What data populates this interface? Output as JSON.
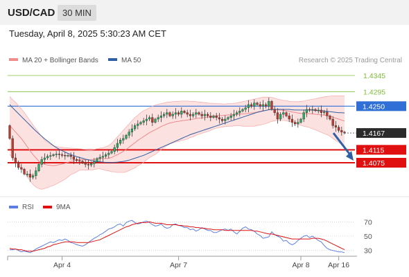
{
  "header": {
    "symbol": "USD/CAD",
    "timeframe": "30 MIN",
    "datetime": "Tuesday, April 8, 2025 5:30:23 AM CET"
  },
  "chart_data": [
    {
      "type": "candlestick",
      "legend": [
        {
          "label": "MA 20 + Bollinger Bands",
          "color": "#f28b8b"
        },
        {
          "label": "MA 50",
          "color": "#2f5fa5"
        }
      ],
      "legend_position": "top-left",
      "credit": "Research © 2025 Trading Central",
      "ylim": [
        1.3985,
        1.4375
      ],
      "levels": [
        {
          "value": 1.4345,
          "label": "1.4345",
          "style": "target",
          "color": "#7cbf3a"
        },
        {
          "value": 1.4295,
          "label": "1.4295",
          "style": "target",
          "color": "#7cbf3a"
        },
        {
          "value": 1.425,
          "label": "1.4250",
          "style": "pivot",
          "color": "#2f6fd6"
        },
        {
          "value": 1.4167,
          "label": "1.4167",
          "style": "last",
          "color": "#2b2b2b"
        },
        {
          "value": 1.4115,
          "label": "1.4115",
          "style": "support",
          "color": "#e01010"
        },
        {
          "value": 1.4075,
          "label": "1.4075",
          "style": "support",
          "color": "#e01010"
        }
      ],
      "close": [
        1.415,
        1.409,
        1.4075,
        1.406,
        1.4055,
        1.404,
        1.404,
        1.403,
        1.4035,
        1.405,
        1.407,
        1.4085,
        1.409,
        1.4095,
        1.4097,
        1.41,
        1.4102,
        1.41,
        1.4098,
        1.4096,
        1.4098,
        1.4094,
        1.4085,
        1.4082,
        1.408,
        1.4075,
        1.407,
        1.4068,
        1.4072,
        1.4078,
        1.4088,
        1.4092,
        1.4095,
        1.41,
        1.4105,
        1.411,
        1.4122,
        1.4135,
        1.4145,
        1.415,
        1.416,
        1.417,
        1.418,
        1.419,
        1.4195,
        1.42,
        1.4205,
        1.421,
        1.4215,
        1.42,
        1.421,
        1.4215,
        1.422,
        1.4225,
        1.423,
        1.422,
        1.4225,
        1.423,
        1.4225,
        1.4235,
        1.423,
        1.4225,
        1.422,
        1.4225,
        1.423,
        1.4225,
        1.422,
        1.4225,
        1.422,
        1.4215,
        1.422,
        1.4215,
        1.421,
        1.4205,
        1.421,
        1.4215,
        1.422,
        1.4225,
        1.423,
        1.4235,
        1.424,
        1.4245,
        1.4255,
        1.425,
        1.426,
        1.4255,
        1.425,
        1.4255,
        1.425,
        1.4265,
        1.424,
        1.423,
        1.421,
        1.4225,
        1.423,
        1.422,
        1.421,
        1.42,
        1.4195,
        1.42,
        1.421,
        1.423,
        1.424,
        1.4238,
        1.424,
        1.4236,
        1.4238,
        1.423,
        1.4232,
        1.422,
        1.421,
        1.419,
        1.4185,
        1.4175,
        1.417,
        1.4167
      ],
      "ma20": [
        1.419,
        1.418,
        1.417,
        1.416,
        1.415,
        1.4138,
        1.4125,
        1.4112,
        1.41,
        1.409,
        1.408,
        1.4073,
        1.407,
        1.4068,
        1.4067,
        1.4066,
        1.4067,
        1.4069,
        1.4071,
        1.4073,
        1.4076,
        1.4079,
        1.4081,
        1.4083,
        1.4085,
        1.4085,
        1.4084,
        1.4084,
        1.4084,
        1.4085,
        1.4087,
        1.4088,
        1.4088,
        1.4088,
        1.4089,
        1.4091,
        1.4096,
        1.41,
        1.4105,
        1.411,
        1.4116,
        1.4123,
        1.413,
        1.4137,
        1.4144,
        1.415,
        1.4156,
        1.4162,
        1.4168,
        1.4173,
        1.4177,
        1.4182,
        1.4187,
        1.4191,
        1.4195,
        1.4198,
        1.42,
        1.4202,
        1.4203,
        1.4205,
        1.4206,
        1.4207,
        1.4209,
        1.421,
        1.4212,
        1.4213,
        1.4214,
        1.4215,
        1.4216,
        1.4217,
        1.4219,
        1.422,
        1.4221,
        1.4221,
        1.4222,
        1.4223,
        1.4223,
        1.4224,
        1.4225,
        1.4226,
        1.4226,
        1.4227,
        1.4228,
        1.4229,
        1.423,
        1.4232,
        1.4234,
        1.4236,
        1.4237,
        1.4239,
        1.424,
        1.424,
        1.4239,
        1.4238,
        1.4237,
        1.4236,
        1.4234,
        1.4232,
        1.4231,
        1.4229,
        1.4228,
        1.4227,
        1.4227,
        1.4227,
        1.4226,
        1.4225,
        1.4224,
        1.4223,
        1.4222,
        1.4221,
        1.4219,
        1.4216,
        1.4213,
        1.421,
        1.4207,
        1.4204
      ],
      "bollinger_upper": [
        1.428,
        1.427,
        1.4262,
        1.4252,
        1.4242,
        1.423,
        1.4218,
        1.4205,
        1.4192,
        1.418,
        1.4168,
        1.4156,
        1.4145,
        1.4138,
        1.4132,
        1.4128,
        1.4125,
        1.4124,
        1.4123,
        1.4122,
        1.4121,
        1.412,
        1.412,
        1.4119,
        1.4118,
        1.4117,
        1.4116,
        1.4115,
        1.4115,
        1.4116,
        1.4118,
        1.412,
        1.4122,
        1.4125,
        1.4128,
        1.4135,
        1.4145,
        1.4155,
        1.4165,
        1.4175,
        1.4185,
        1.4195,
        1.4205,
        1.4215,
        1.4222,
        1.423,
        1.4236,
        1.424,
        1.4245,
        1.425,
        1.4253,
        1.4256,
        1.4258,
        1.426,
        1.4262,
        1.4263,
        1.4264,
        1.4265,
        1.4265,
        1.4266,
        1.4266,
        1.4266,
        1.4265,
        1.4265,
        1.4264,
        1.4263,
        1.4262,
        1.4261,
        1.426,
        1.4259,
        1.4259,
        1.4258,
        1.4258,
        1.4257,
        1.4257,
        1.4258,
        1.4258,
        1.4259,
        1.426,
        1.4262,
        1.4264,
        1.4266,
        1.4268,
        1.427,
        1.4272,
        1.4274,
        1.4276,
        1.4278,
        1.4278,
        1.4278,
        1.4277,
        1.4275,
        1.4272,
        1.427,
        1.4268,
        1.4267,
        1.4265,
        1.4264,
        1.4264,
        1.4264,
        1.4265,
        1.4266,
        1.4268,
        1.427,
        1.4272,
        1.4273,
        1.4275,
        1.4277,
        1.4279,
        1.428,
        1.4281,
        1.4282,
        1.4282,
        1.4282,
        1.4282,
        1.4282
      ],
      "bollinger_lower": [
        1.41,
        1.409,
        1.4078,
        1.4068,
        1.4058,
        1.4046,
        1.4032,
        1.4019,
        1.4008,
        1.4,
        1.3995,
        1.3993,
        1.3995,
        1.3998,
        1.4002,
        1.4005,
        1.4009,
        1.4014,
        1.4019,
        1.4024,
        1.4031,
        1.4038,
        1.4042,
        1.4047,
        1.4052,
        1.4053,
        1.4052,
        1.4053,
        1.4053,
        1.4054,
        1.4056,
        1.4056,
        1.4054,
        1.4051,
        1.405,
        1.4047,
        1.4047,
        1.4045,
        1.4045,
        1.4045,
        1.4047,
        1.4051,
        1.4055,
        1.4059,
        1.4066,
        1.407,
        1.4076,
        1.4084,
        1.4091,
        1.4096,
        1.4101,
        1.4108,
        1.4116,
        1.4122,
        1.4128,
        1.4133,
        1.4136,
        1.4139,
        1.4141,
        1.4144,
        1.4146,
        1.4148,
        1.4153,
        1.4155,
        1.416,
        1.4163,
        1.4166,
        1.4169,
        1.4172,
        1.4175,
        1.4179,
        1.4182,
        1.4184,
        1.4185,
        1.4187,
        1.4188,
        1.4188,
        1.4189,
        1.419,
        1.419,
        1.4188,
        1.4188,
        1.4188,
        1.4188,
        1.4188,
        1.419,
        1.4192,
        1.4194,
        1.4196,
        1.42,
        1.4203,
        1.4205,
        1.4206,
        1.4206,
        1.4206,
        1.4205,
        1.4203,
        1.42,
        1.4198,
        1.4194,
        1.4191,
        1.4188,
        1.4186,
        1.4184,
        1.418,
        1.4177,
        1.4173,
        1.4169,
        1.4165,
        1.4162,
        1.4157,
        1.415,
        1.4144,
        1.4138,
        1.4132,
        1.4126
      ],
      "ma50": [
        1.4255,
        1.4245,
        1.4236,
        1.4227,
        1.4218,
        1.4209,
        1.42,
        1.4191,
        1.4182,
        1.4173,
        1.4165,
        1.4157,
        1.4149,
        1.4142,
        1.4135,
        1.4128,
        1.4122,
        1.4117,
        1.4112,
        1.4108,
        1.4104,
        1.41,
        1.4097,
        1.4094,
        1.4091,
        1.4089,
        1.4086,
        1.4084,
        1.4082,
        1.408,
        1.4079,
        1.4078,
        1.4077,
        1.4076,
        1.4076,
        1.4075,
        1.4076,
        1.4077,
        1.4078,
        1.4079,
        1.4081,
        1.4083,
        1.4086,
        1.4089,
        1.4092,
        1.4095,
        1.4098,
        1.4102,
        1.4106,
        1.411,
        1.4114,
        1.4118,
        1.4122,
        1.4126,
        1.413,
        1.4134,
        1.4138,
        1.4142,
        1.4146,
        1.415,
        1.4154,
        1.4158,
        1.4162,
        1.4165,
        1.4168,
        1.4171,
        1.4174,
        1.4177,
        1.418,
        1.4183,
        1.4186,
        1.4189,
        1.4192,
        1.4195,
        1.4198,
        1.4201,
        1.4204,
        1.4207,
        1.421,
        1.4213,
        1.4216,
        1.4219,
        1.4222,
        1.4225,
        1.4228,
        1.4231,
        1.4233,
        1.4235,
        1.4237,
        1.4239,
        1.424,
        1.424,
        1.424,
        1.424,
        1.424,
        1.424,
        1.424,
        1.4239,
        1.4238,
        1.4238,
        1.4238,
        1.4238,
        1.4238,
        1.4238,
        1.4238,
        1.4237,
        1.4236,
        1.4236,
        1.4235,
        1.4234,
        1.4233,
        1.4232,
        1.4231,
        1.423,
        1.423,
        1.4229
      ],
      "x_tick_labels": [
        {
          "label": "Apr 4",
          "index": 18
        },
        {
          "label": "Apr 7",
          "index": 58
        },
        {
          "label": "Apr 8",
          "index": 100
        },
        {
          "label": "Apr 16",
          "index": 113
        }
      ],
      "projection": {
        "from": 1.4167,
        "to": 1.4075,
        "direction": "down",
        "color": "#2f5fa5"
      }
    },
    {
      "type": "line",
      "legend": [
        {
          "label": "RSI",
          "color": "#5b7ee5"
        },
        {
          "label": "9MA",
          "color": "#e01010"
        }
      ],
      "ylim": [
        20,
        80
      ],
      "y_ticks": [
        70,
        50,
        30
      ],
      "grid": "dotted",
      "series": [
        {
          "name": "RSI",
          "color": "#5b7ee5",
          "values": [
            31,
            31,
            32,
            30,
            28,
            29,
            28,
            27,
            29,
            32,
            34,
            36,
            38,
            40,
            42,
            41,
            43,
            45,
            44,
            46,
            44,
            41,
            40,
            38,
            37,
            36,
            38,
            41,
            44,
            47,
            49,
            52,
            54,
            57,
            60,
            61,
            63,
            66,
            67,
            64,
            69,
            71,
            72,
            69,
            67,
            68,
            70,
            71,
            69,
            66,
            64,
            65,
            67,
            63,
            61,
            62,
            66,
            67,
            65,
            64,
            62,
            62,
            59,
            60,
            57,
            59,
            62,
            60,
            58,
            58,
            55,
            55,
            57,
            59,
            60,
            58,
            60,
            56,
            53,
            57,
            61,
            63,
            60,
            59,
            57,
            53,
            51,
            47,
            48,
            49,
            56,
            52,
            50,
            48,
            43,
            44,
            40,
            38,
            40,
            44,
            47,
            50,
            51,
            48,
            50,
            47,
            44,
            42,
            37,
            33,
            31,
            30,
            29,
            28,
            28,
            27
          ]
        },
        {
          "name": "9MA",
          "color": "#e01010",
          "values": [
            33,
            32,
            32,
            31,
            31,
            30,
            29,
            29,
            29,
            30,
            31,
            32,
            33,
            35,
            36,
            38,
            39,
            40,
            41,
            42,
            42,
            42,
            42,
            41,
            41,
            41,
            41,
            41,
            42,
            43,
            44,
            45,
            47,
            49,
            51,
            53,
            55,
            57,
            59,
            61,
            63,
            64,
            66,
            67,
            68,
            69,
            69,
            69,
            70,
            69,
            68,
            68,
            68,
            67,
            66,
            66,
            66,
            66,
            65,
            65,
            64,
            64,
            63,
            63,
            62,
            62,
            61,
            61,
            60,
            60,
            59,
            59,
            59,
            59,
            58,
            58,
            58,
            58,
            58,
            58,
            58,
            58,
            58,
            58,
            57,
            57,
            56,
            55,
            54,
            53,
            53,
            52,
            51,
            50,
            49,
            48,
            47,
            46,
            46,
            46,
            46,
            46,
            46,
            46,
            47,
            47,
            47,
            46,
            45,
            43,
            41,
            39,
            37,
            35,
            33,
            31
          ]
        }
      ]
    }
  ]
}
